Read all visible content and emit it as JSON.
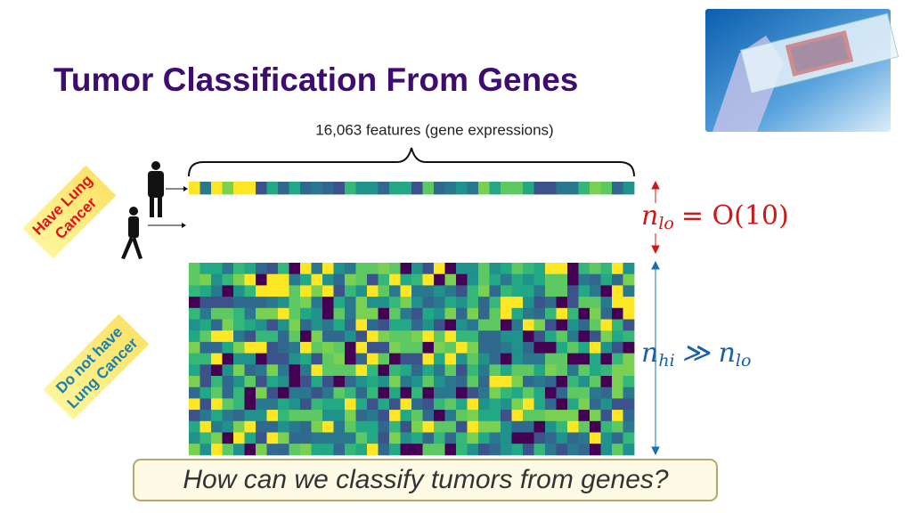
{
  "header": {
    "title": "Tumor Classification From Genes"
  },
  "features_label": "16,063 features (gene expressions)",
  "group_labels": {
    "have": [
      "Have Lung",
      "Cancer"
    ],
    "have_not": [
      "Do not have",
      "Lung Cancer"
    ]
  },
  "math": {
    "n_lo": [
      "n",
      "lo",
      "= O(10)"
    ],
    "n_hi": [
      "n",
      "hi",
      "≫ n",
      "lo"
    ]
  },
  "question": "How can we classify tumors from genes?"
}
